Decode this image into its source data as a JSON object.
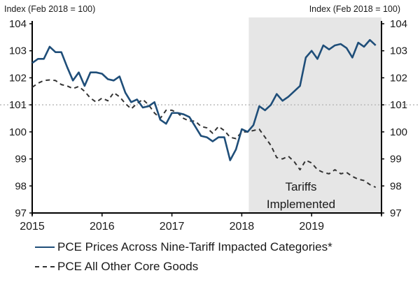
{
  "chart_data": {
    "type": "line",
    "title": "",
    "ylabel_left": "Index (Feb 2018 = 100)",
    "ylabel_right": "Index (Feb 2018 = 100)",
    "xlabel": "",
    "ylim": [
      97,
      104
    ],
    "yticks": [
      97,
      98,
      99,
      100,
      101,
      102,
      103,
      104
    ],
    "ytick_labels": [
      "97",
      "98",
      "99",
      "100",
      "101",
      "102",
      "103",
      "104"
    ],
    "xlim": [
      2015.0,
      2020.0
    ],
    "xticks": [
      2015,
      2016,
      2017,
      2018,
      2019,
      2020
    ],
    "xtick_labels": [
      "2015",
      "2016",
      "2017",
      "2018",
      "2019",
      ""
    ],
    "reference_line": {
      "y": 101,
      "style": "dotted"
    },
    "shaded_region": {
      "x_start": 2018.1,
      "x_end": 2020.0,
      "label_lines": [
        "Tariffs",
        "Implemented"
      ]
    },
    "x_start": "2015-01",
    "frequency": "monthly",
    "series": [
      {
        "name": "PCE Prices Across Nine-Tariff Impacted Categories*",
        "style": "solid",
        "color": "#1f4e79",
        "values": [
          102.55,
          102.7,
          102.7,
          103.15,
          102.95,
          102.95,
          102.4,
          101.9,
          102.2,
          101.7,
          102.2,
          102.2,
          102.15,
          101.95,
          101.9,
          102.05,
          101.45,
          101.1,
          101.2,
          100.9,
          100.95,
          101.1,
          100.45,
          100.3,
          100.7,
          100.7,
          100.65,
          100.55,
          100.2,
          99.85,
          99.8,
          99.65,
          99.8,
          99.8,
          98.95,
          99.35,
          100.1,
          100.0,
          100.25,
          100.95,
          100.8,
          101.0,
          101.4,
          101.15,
          101.3,
          101.5,
          101.7,
          102.75,
          103.0,
          102.7,
          103.2,
          103.05,
          103.2,
          103.25,
          103.1,
          102.75,
          103.3,
          103.15,
          103.4,
          103.2
        ]
      },
      {
        "name": "PCE All Other Core Goods",
        "style": "dashed",
        "color": "#333333",
        "values": [
          101.65,
          101.8,
          101.9,
          101.92,
          101.9,
          101.75,
          101.7,
          101.6,
          101.68,
          101.5,
          101.25,
          101.1,
          101.25,
          101.15,
          101.45,
          101.3,
          101.05,
          100.85,
          101.05,
          101.2,
          101.0,
          100.7,
          100.5,
          100.8,
          100.8,
          100.7,
          100.5,
          100.4,
          100.4,
          100.2,
          100.15,
          99.95,
          100.2,
          100.05,
          99.8,
          99.75,
          100.0,
          100.0,
          100.05,
          100.1,
          99.8,
          99.5,
          99.05,
          99.0,
          99.1,
          98.9,
          98.6,
          98.95,
          98.85,
          98.6,
          98.5,
          98.45,
          98.6,
          98.45,
          98.5,
          98.35,
          98.25,
          98.2,
          98.05,
          97.95
        ]
      }
    ],
    "legend": {
      "position": "bottom-left"
    }
  },
  "legend_items": [
    {
      "label": "PCE Prices Across Nine-Tariff Impacted Categories*",
      "style": "solid"
    },
    {
      "label": "PCE All Other Core Goods",
      "style": "dashed"
    }
  ],
  "colors": {
    "solid_series": "#1f4e79",
    "dashed_series": "#333333",
    "shade": "#e6e6e6",
    "reference": "#bbbbbb"
  }
}
